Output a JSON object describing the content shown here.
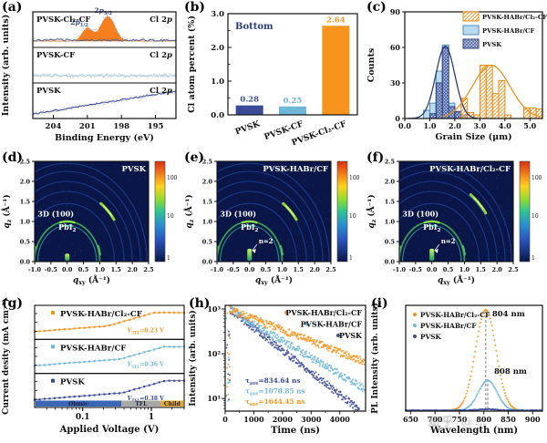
{
  "figure_type": "multi-panel scientific figure",
  "watermark": "知乎 @…",
  "chart_data": [
    {
      "panel": "a",
      "panel_label": "(a)",
      "type": "line",
      "xlabel": "Binding Energy (eV)",
      "ylabel": "Intensity (arb. units)",
      "x_ticks": [
        204,
        201,
        198,
        195
      ],
      "x_range": [
        205.8,
        193.2
      ],
      "corner_label_parts": [
        {
          "t": "Cl 2"
        },
        {
          "t": "p",
          "it": true
        }
      ],
      "subpanels": [
        {
          "name": "PVSK-Cl₂-CF",
          "trend": "flat",
          "peaks": [
            {
              "center": 201.0,
              "sigma": 0.45,
              "amp": 0.52,
              "label_parts": [
                {
                  "t": "2"
                },
                {
                  "t": "p",
                  "it": true
                },
                {
                  "t": "1/2",
                  "sub": true
                }
              ]
            },
            {
              "center": 199.2,
              "sigma": 0.62,
              "amp": 1.0,
              "label_parts": [
                {
                  "t": "2"
                },
                {
                  "t": "p",
                  "it": true
                },
                {
                  "t": "3/2",
                  "sub": true
                }
              ]
            }
          ]
        },
        {
          "name": "PVSK-CF",
          "trend": "flat",
          "peaks": []
        },
        {
          "name": "PVSK",
          "trend": "rising",
          "peaks": []
        }
      ],
      "colors": {
        "peak_fill": "#f57e1f",
        "peak_edge": "#e2690e",
        "peak_label": "#3b4a97",
        "line_colors": [
          "#59618a",
          "#a9cde4",
          "#3b4a97"
        ],
        "scatter": "#bcc3cf"
      }
    },
    {
      "panel": "b",
      "panel_label": "(b)",
      "type": "bar",
      "annotation": "Bottom",
      "annotation_color": "#2b3a7e",
      "ylabel": "Cl atom percent (%)",
      "categories": [
        "PVSK",
        "PVSK-CF",
        "PVSK-Cl₂-CF"
      ],
      "values": [
        0.28,
        0.25,
        2.64
      ],
      "value_labels": [
        "0.28",
        "0.25",
        "2.64"
      ],
      "bar_colors": [
        "#3b4a97",
        "#6fb7d9",
        "#f7941d"
      ],
      "ylim": [
        0,
        3.0
      ],
      "y_ticks": [
        "0.0",
        "1.0",
        "2.0",
        "3.0"
      ]
    },
    {
      "panel": "c",
      "panel_label": "(c)",
      "type": "histogram",
      "xlabel": "Grain Size (μm)",
      "ylabel": "Counts",
      "xlim": [
        0,
        5.5
      ],
      "x_ticks": [
        0,
        1,
        2,
        3,
        4,
        5
      ],
      "ylim": [
        0,
        90
      ],
      "y_ticks": [
        0,
        30,
        60,
        90
      ],
      "legend": [
        {
          "label": "PVSK-HABr/Cl₂-CF",
          "color": "#f7941d",
          "hatch": "diag"
        },
        {
          "label": "PVSK-HABr/CF",
          "color": "#a6d2ea",
          "hatch": "none"
        },
        {
          "label": "PVSK",
          "color": "#3b4a97",
          "hatch": "cross"
        }
      ],
      "series": [
        {
          "name": "PVSK-HABr/CF",
          "hatch": "none",
          "bin_width": 0.25,
          "bins": [
            [
              0.75,
              7
            ],
            [
              1.0,
              13
            ],
            [
              1.25,
              40
            ],
            [
              1.5,
              62
            ],
            [
              1.75,
              13
            ],
            [
              2.0,
              5
            ]
          ]
        },
        {
          "name": "PVSK",
          "hatch": "cross",
          "bin_width": 0.25,
          "bins": [
            [
              1.0,
              4
            ],
            [
              1.25,
              30
            ],
            [
              1.5,
              60
            ],
            [
              1.75,
              10
            ],
            [
              2.0,
              6
            ],
            [
              2.25,
              3
            ]
          ]
        },
        {
          "name": "PVSK-HABr/Cl₂-CF",
          "hatch": "diag",
          "bin_width": 0.25,
          "bins": [
            [
              2.25,
              17
            ],
            [
              2.5,
              5
            ],
            [
              2.75,
              3
            ],
            [
              3.0,
              45
            ],
            [
              3.25,
              45
            ],
            [
              3.5,
              21
            ],
            [
              3.75,
              32
            ],
            [
              4.0,
              3
            ],
            [
              4.75,
              9
            ],
            [
              5.0,
              9
            ],
            [
              5.25,
              8
            ]
          ]
        }
      ],
      "fits": [
        {
          "color": "#2c3c7a",
          "center": 1.62,
          "sigma": 0.38,
          "amp": 61,
          "range": [
            0.15,
            2.9
          ]
        },
        {
          "color": "#e8921a",
          "center": 3.45,
          "sigma": 0.75,
          "amp": 45,
          "range": [
            1.5,
            5.45
          ]
        }
      ]
    },
    {
      "panel": "d",
      "panel_label": "(d)",
      "type": "heatmap",
      "title": "PVSK",
      "xlabel_parts": [
        {
          "t": "q",
          "it": true
        },
        {
          "t": "xy",
          "sub": true
        },
        {
          "t": " (Å⁻¹)"
        }
      ],
      "ylabel_parts": [
        {
          "t": "q",
          "it": true
        },
        {
          "t": "z",
          "sub": true
        },
        {
          "t": " (Å⁻¹)"
        }
      ],
      "xlim": [
        -1.0,
        2.5
      ],
      "ylim": [
        0,
        2.5
      ],
      "x_ticks": [
        -1.0,
        -0.5,
        0.0,
        0.5,
        1.0,
        1.5,
        2.0,
        2.5
      ],
      "y_ticks": [
        0.0,
        0.5,
        1.0,
        1.5,
        2.0,
        2.5
      ],
      "annotations": [
        {
          "parts": [
            {
              "t": "3D (100)"
            }
          ],
          "x": -0.35,
          "y": 1.12
        },
        {
          "parts": [
            {
              "t": "PbI"
            },
            {
              "t": "2",
              "sub": true
            }
          ],
          "x": 0.0,
          "y": 0.8
        }
      ],
      "rings": [
        0.9,
        1.0,
        1.45,
        1.75,
        2.0,
        2.25,
        2.45
      ],
      "bright_r": 1.78,
      "streak_h": 0.2,
      "n2": null,
      "colorbar_ticks": [
        "100",
        "10",
        "1"
      ]
    },
    {
      "panel": "e",
      "panel_label": "(e)",
      "type": "heatmap",
      "title": "PVSK-HABr/CF",
      "xlabel_parts": [
        {
          "t": "q",
          "it": true
        },
        {
          "t": "xy",
          "sub": true
        },
        {
          "t": " (Å⁻¹)"
        }
      ],
      "ylabel_parts": [
        {
          "t": "q",
          "it": true
        },
        {
          "t": "z",
          "sub": true
        },
        {
          "t": " (Å⁻¹)"
        }
      ],
      "xlim": [
        -1.0,
        2.5
      ],
      "ylim": [
        0,
        2.5
      ],
      "x_ticks": [
        -1.0,
        -0.5,
        0.0,
        0.5,
        1.0,
        1.5,
        2.0,
        2.5
      ],
      "y_ticks": [
        0.0,
        0.5,
        1.0,
        1.5,
        2.0,
        2.5
      ],
      "annotations": [
        {
          "parts": [
            {
              "t": "3D (100)"
            }
          ],
          "x": -0.35,
          "y": 1.12
        },
        {
          "parts": [
            {
              "t": "PbI"
            },
            {
              "t": "2",
              "sub": true
            }
          ],
          "x": 0.0,
          "y": 0.8
        }
      ],
      "rings": [
        0.9,
        1.0,
        1.45,
        1.75,
        2.0,
        2.25,
        2.45
      ],
      "bright_r": 1.78,
      "streak_h": 0.32,
      "n2": {
        "text": "n=2",
        "x": 0.28,
        "y": 0.45
      },
      "colorbar_ticks": [
        "100",
        "10",
        "1"
      ]
    },
    {
      "panel": "f",
      "panel_label": "(f)",
      "type": "heatmap",
      "title": "PVSK-HABr/Cl₂-CF",
      "xlabel_parts": [
        {
          "t": "q",
          "it": true
        },
        {
          "t": "xy",
          "sub": true
        },
        {
          "t": " (Å⁻¹)"
        }
      ],
      "ylabel_parts": [
        {
          "t": "q",
          "it": true
        },
        {
          "t": "z",
          "sub": true
        },
        {
          "t": " (Å⁻¹)"
        }
      ],
      "xlim": [
        -1.0,
        2.5
      ],
      "ylim": [
        0,
        2.5
      ],
      "x_ticks": [
        -1.0,
        -0.5,
        0.0,
        0.5,
        1.0,
        1.5,
        2.0,
        2.5
      ],
      "y_ticks": [
        0.0,
        0.5,
        1.0,
        1.5,
        2.0,
        2.5
      ],
      "annotations": [
        {
          "parts": [
            {
              "t": "3D (100)"
            }
          ],
          "x": -0.35,
          "y": 1.12
        },
        {
          "parts": [
            {
              "t": "PbI"
            },
            {
              "t": "2",
              "sub": true
            }
          ],
          "x": 0.0,
          "y": 0.8
        }
      ],
      "rings": [
        0.9,
        1.0,
        1.45,
        1.75,
        2.0,
        2.25,
        2.45
      ],
      "bright_r": 2.05,
      "streak_h": 0.32,
      "n2": {
        "text": "n=2",
        "x": 0.28,
        "y": 0.45
      },
      "colorbar_ticks": [
        "100",
        "10",
        "1"
      ]
    },
    {
      "panel": "g",
      "panel_label": "(g)",
      "type": "line",
      "xlabel": "Applied Voltage (V)",
      "ylabel": "Current desity (mA cm⁻²)",
      "xlim": [
        0.02,
        3
      ],
      "x_ticks": [
        {
          "v": 0.1,
          "label": "0.1"
        },
        {
          "v": 1,
          "label": "1"
        }
      ],
      "subpanels": [
        {
          "name": "PVSK-HABr/Cl₂-CF",
          "color": "#f7941d",
          "vtfl": 0.23,
          "vtfl_parts": [
            {
              "t": "V",
              "it": true
            },
            {
              "t": "TFL",
              "sub": true
            },
            {
              "t": "=0.23 V"
            }
          ]
        },
        {
          "name": "PVSK-HABr/CF",
          "color": "#6fb7d9",
          "vtfl": 0.36,
          "vtfl_parts": [
            {
              "t": "V",
              "it": true
            },
            {
              "t": "TFL",
              "sub": true
            },
            {
              "t": "=0.36 V"
            }
          ]
        },
        {
          "name": "PVSK",
          "color": "#3b4a97",
          "vtfl": 0.38,
          "vtfl_parts": [
            {
              "t": "V",
              "it": true
            },
            {
              "t": "TFL",
              "sub": true
            },
            {
              "t": "=0.38 V"
            }
          ]
        }
      ],
      "regions": [
        {
          "label": "Ohmic",
          "color": "#3a66b5",
          "frac": 0.58
        },
        {
          "label": "TFL",
          "color": "#a8a8a8",
          "frac": 0.27
        },
        {
          "label": "Child",
          "color": "#e9a923",
          "frac": 0.15
        }
      ]
    },
    {
      "panel": "h",
      "panel_label": "(h)",
      "type": "scatter",
      "xlabel": "Time (ns)",
      "ylabel": "Intensity (arb. units)",
      "xlim": [
        0,
        4900
      ],
      "x_ticks": [
        0,
        1000,
        2000,
        3000,
        4000
      ],
      "y_ticks": [
        "10¹",
        "10²",
        "10³"
      ],
      "series": [
        {
          "name": "PVSK",
          "color": "#3b4a97",
          "tau": 880,
          "tau_parts": [
            {
              "t": "τ"
            },
            {
              "t": "ave",
              "sub": true
            },
            {
              "t": "=834.64 ns"
            }
          ]
        },
        {
          "name": "PVSK-HABr/CF",
          "color": "#6fb7d9",
          "tau": 1150,
          "tau_parts": [
            {
              "t": "τ"
            },
            {
              "t": "ave",
              "sub": true
            },
            {
              "t": "=1078.85 ns"
            }
          ]
        },
        {
          "name": "PVSK-HABr/Cl₂-CF",
          "color": "#f7941d",
          "tau": 1750,
          "tau_parts": [
            {
              "t": "τ"
            },
            {
              "t": "ave",
              "sub": true
            },
            {
              "t": "=1644.45 ns"
            }
          ]
        }
      ],
      "legend": [
        {
          "label": "PVSK-HABr/Cl₂-CF",
          "color": "#f7941d",
          "dot_x": 109
        },
        {
          "label": "PVSK-HABr/CF",
          "color": "#6fb7d9",
          "dot_x": 131
        },
        {
          "label": "PVSK",
          "color": "#3b4a97",
          "dot_x": 166
        }
      ]
    },
    {
      "panel": "i",
      "panel_label": "(i)",
      "type": "line",
      "xlabel": "Wavelength (nm)",
      "ylabel": "PL Intensity (arb. units)",
      "xlim": [
        640,
        920
      ],
      "x_ticks": [
        650,
        700,
        750,
        800,
        850,
        900
      ],
      "legend": [
        {
          "label": "PVSK-HABr/Cl₂-CF",
          "color": "#f7941d"
        },
        {
          "label": "PVSK-HABr/CF",
          "color": "#6fb7d9"
        },
        {
          "label": "PVSK",
          "color": "#3b4a97"
        }
      ],
      "series": [
        {
          "name": "PVSK-HABr/Cl₂-CF",
          "color": "#f7941d",
          "center": 804,
          "sigma": 21,
          "amp": 1.0,
          "peak_label": "804 nm"
        },
        {
          "name": "PVSK-HABr/CF",
          "color": "#6fb7d9",
          "center": 808,
          "sigma": 19,
          "amp": 0.3,
          "peak_label": "808 nm"
        },
        {
          "name": "PVSK",
          "color": "#3b4a97",
          "center": 806,
          "sigma": 20,
          "amp": 0.012
        }
      ]
    }
  ]
}
